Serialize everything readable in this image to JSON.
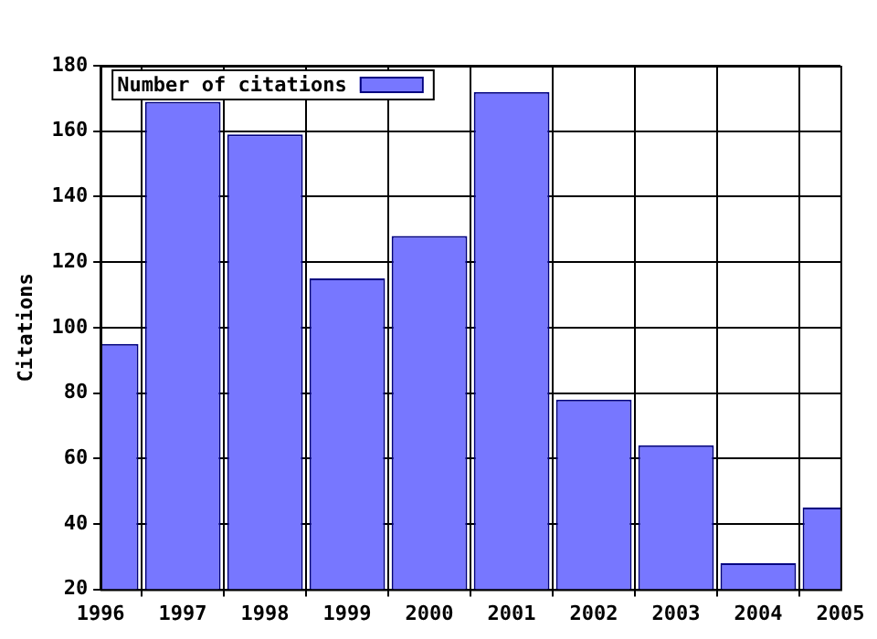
{
  "chart_data": {
    "type": "bar",
    "ylabel": "Citations",
    "x": [
      1996,
      1997,
      1998,
      1999,
      2000,
      2001,
      2002,
      2003,
      2004,
      2005
    ],
    "series": [
      {
        "name": "Number of citations",
        "color": "#7777ff",
        "values": [
          95,
          169,
          159,
          115,
          128,
          172,
          78,
          64,
          28,
          45
        ]
      }
    ],
    "xlim": [
      1996,
      2005
    ],
    "xticks": [
      1996,
      1997,
      1998,
      1999,
      2000,
      2001,
      2002,
      2003,
      2004,
      2005
    ],
    "ylim": [
      20,
      180
    ],
    "yticks": [
      20,
      40,
      60,
      80,
      100,
      120,
      140,
      160,
      180
    ],
    "grid": true,
    "legend": "top left"
  }
}
